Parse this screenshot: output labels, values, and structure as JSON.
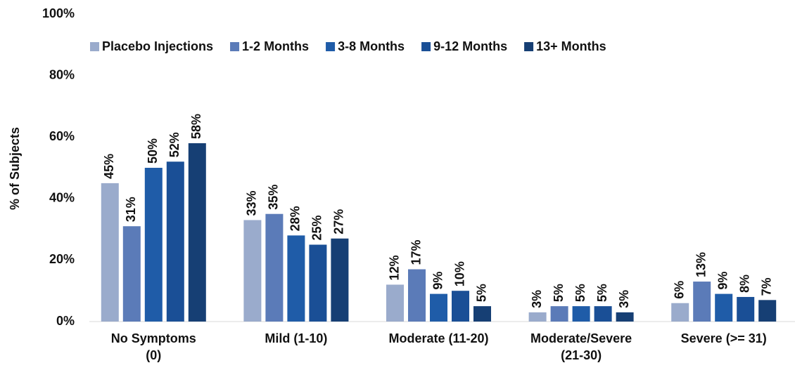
{
  "chart_data": {
    "type": "bar",
    "y_label": "% of Subjects",
    "categories": [
      "No Symptoms\n(0)",
      "Mild (1-10)",
      "Moderate (11-20)",
      "Moderate/Severe\n(21-30)",
      "Severe (>= 31)"
    ],
    "series": [
      {
        "name": "Placebo Injections",
        "color": "#9aabcc",
        "values": [
          45,
          33,
          12,
          3,
          6
        ],
        "value_labels": [
          "45%",
          "33%",
          "12%",
          "3%",
          "6%"
        ]
      },
      {
        "name": "1-2 Months",
        "color": "#5b7bb8",
        "values": [
          31,
          35,
          17,
          5,
          13
        ],
        "value_labels": [
          "31%",
          "35%",
          "17%",
          "5%",
          "13%"
        ]
      },
      {
        "name": "3-8 Months",
        "color": "#1f5ca8",
        "values": [
          50,
          28,
          9,
          5,
          9
        ],
        "value_labels": [
          "50%",
          "28%",
          "9%",
          "5%",
          "9%"
        ]
      },
      {
        "name": "9-12 Months",
        "color": "#1a4f96",
        "values": [
          52,
          25,
          10,
          5,
          8
        ],
        "value_labels": [
          "52%",
          "25%",
          "10%",
          "5%",
          "8%"
        ]
      },
      {
        "name": "13+ Months",
        "color": "#163f74",
        "values": [
          58,
          27,
          5,
          3,
          7
        ],
        "value_labels": [
          "58%",
          "27%",
          "5%",
          "3%",
          "7%"
        ]
      }
    ],
    "ylim": [
      0,
      100
    ],
    "yticks": [
      {
        "value": 0,
        "label": "0%"
      },
      {
        "value": 20,
        "label": "20%"
      },
      {
        "value": 40,
        "label": "40%"
      },
      {
        "value": 60,
        "label": "60%"
      },
      {
        "value": 80,
        "label": "80%"
      },
      {
        "value": 100,
        "label": "100%"
      }
    ],
    "grid": false,
    "legend": "top"
  }
}
